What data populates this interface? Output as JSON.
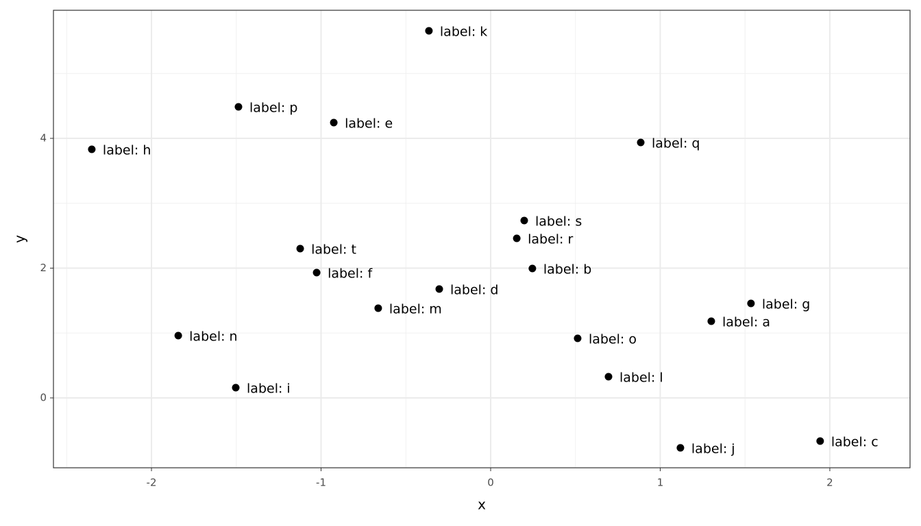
{
  "chart_data": {
    "type": "scatter",
    "x_label": "x",
    "y_label": "y",
    "labels": [
      "label: a",
      "label: b",
      "label: c",
      "label: d",
      "label: e",
      "label: f",
      "label: g",
      "label: h",
      "label: i",
      "label: j",
      "label: k",
      "label: l",
      "label: m",
      "label: n",
      "label: o",
      "label: p",
      "label: q",
      "label: r",
      "label: s",
      "label: t"
    ],
    "x": [
      1.301,
      0.246,
      1.943,
      -0.303,
      -0.925,
      -1.026,
      1.535,
      -2.352,
      -1.503,
      1.119,
      -0.364,
      0.695,
      -0.663,
      -1.842,
      0.513,
      -1.487,
      0.885,
      0.154,
      0.198,
      -1.123
    ],
    "y": [
      1.182,
      1.995,
      -0.665,
      1.678,
      4.243,
      1.931,
      1.456,
      3.831,
      0.158,
      -0.77,
      5.657,
      0.327,
      1.383,
      0.96,
      0.918,
      4.486,
      3.937,
      2.459,
      2.734,
      2.301
    ],
    "color": "#000000",
    "xlim": [
      -2.578,
      2.473
    ],
    "ylim": [
      -1.077,
      5.974
    ],
    "xticks": [
      -2,
      -1,
      0,
      1,
      2
    ],
    "yticks": [
      0,
      2,
      4
    ],
    "x_minor_grid": [
      -2.5,
      -1.5,
      -0.5,
      0.5,
      1.5
    ],
    "y_minor_grid": [
      1,
      3,
      5
    ],
    "grid": true
  }
}
